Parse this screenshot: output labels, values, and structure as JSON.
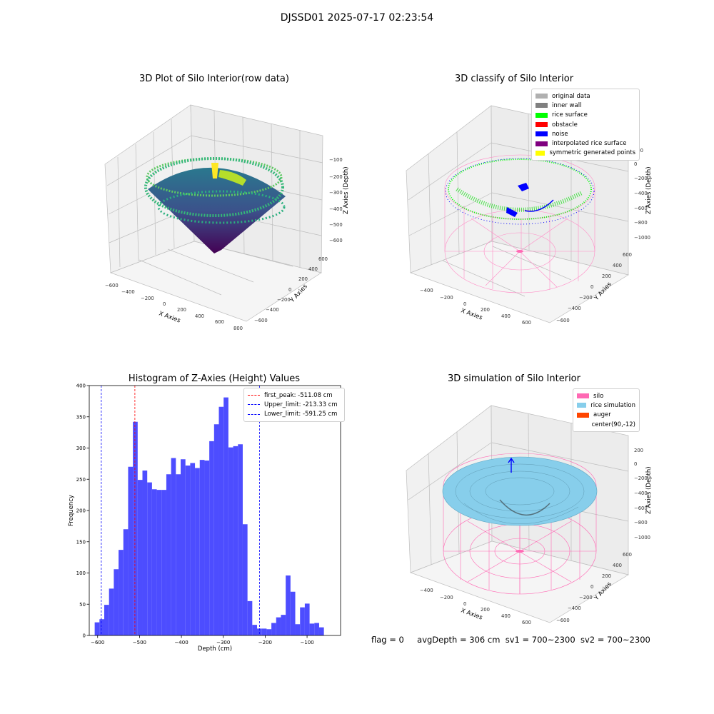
{
  "figure": {
    "suptitle": "DJSSD01 2025-07-17 02:23:54",
    "footer": {
      "flag": "flag = 0",
      "avg_depth": "avgDepth = 306 cm",
      "sv1": "sv1 = 700~2300",
      "sv2": "sv2 = 700~2300"
    }
  },
  "panels": {
    "p1": {
      "title": "3D Plot of Silo Interior(row data)",
      "xlabel": "X Axies",
      "ylabel": "Y Axies",
      "zlabel": "Z Axies (Depth)",
      "xticks": [
        "−600",
        "−400",
        "−200",
        "0",
        "200",
        "400",
        "600",
        "800"
      ],
      "yticks": [
        "600",
        "400",
        "200",
        "0",
        "−200",
        "−400",
        "−600"
      ],
      "zticks": [
        "−100",
        "−200",
        "−300",
        "−400",
        "−500",
        "−600"
      ],
      "colormap": "viridis"
    },
    "p2": {
      "title": "3D classify of Silo Interior",
      "xlabel": "X Axies",
      "ylabel": "Y Axies",
      "zlabel": "Z Axies (Depth)",
      "xticks": [
        "−400",
        "−200",
        "0",
        "200",
        "400",
        "600"
      ],
      "yticks": [
        "600",
        "400",
        "200",
        "0",
        "−200",
        "−400",
        "−600"
      ],
      "zticks": [
        "200",
        "0",
        "−200",
        "−400",
        "−600",
        "−800",
        "−1000"
      ],
      "legend": [
        {
          "label": "original data",
          "color": "#b0b0b0"
        },
        {
          "label": "inner wall",
          "color": "#808080"
        },
        {
          "label": "rice surface",
          "color": "#00ff00"
        },
        {
          "label": "obstacle",
          "color": "#ff0000"
        },
        {
          "label": "noise",
          "color": "#0000ff"
        },
        {
          "label": "interpolated rice surface",
          "color": "#800080"
        },
        {
          "label": "symmetric generated points",
          "color": "#ffff00"
        }
      ]
    },
    "p4": {
      "title": "3D simulation of Silo Interior",
      "xlabel": "X Axies",
      "ylabel": "Y Axies",
      "zlabel": "Z Axies (Depth)",
      "xticks": [
        "−400",
        "−200",
        "0",
        "200",
        "400",
        "600"
      ],
      "yticks": [
        "600",
        "400",
        "200",
        "0",
        "−200",
        "−400",
        "−600"
      ],
      "zticks": [
        "200",
        "0",
        "−200",
        "−400",
        "−600",
        "−800",
        "−1000"
      ],
      "legend": [
        {
          "label": "silo",
          "color": "#ff69b4"
        },
        {
          "label": "rice simulation",
          "color": "#87ceeb"
        },
        {
          "label": "auger",
          "color": "#ff4500"
        },
        {
          "label": "center(90,-12)",
          "color": ""
        }
      ]
    }
  },
  "chart_data": [
    {
      "type": "bar",
      "title": "Histogram of Z-Axies (Height) Values",
      "xlabel": "Depth (cm)",
      "ylabel": "Frequency",
      "xlim": [
        -620,
        -20
      ],
      "ylim": [
        0,
        400
      ],
      "xticks": [
        -600,
        -500,
        -400,
        -300,
        -200,
        -100
      ],
      "yticks": [
        0,
        50,
        100,
        150,
        200,
        250,
        300,
        350,
        400
      ],
      "bar_color": "#4d4dff",
      "bin_start": -607,
      "bin_width": 11.4,
      "values": [
        21,
        26,
        49,
        75,
        106,
        137,
        170,
        270,
        342,
        249,
        264,
        245,
        234,
        233,
        233,
        258,
        284,
        258,
        282,
        272,
        276,
        268,
        281,
        280,
        311,
        338,
        366,
        381,
        301,
        303,
        306,
        178,
        55,
        17,
        11,
        11,
        10,
        20,
        29,
        33,
        96,
        70,
        18,
        45,
        51,
        19,
        20,
        13
      ],
      "vlines": [
        {
          "label": "first_peak: -511.08 cm",
          "x": -511.08,
          "color": "#ff0000"
        },
        {
          "label": "Upper_limit: -213.33 cm",
          "x": -213.33,
          "color": "#0000ff"
        },
        {
          "label": "Lower_limit: -591.25 cm",
          "x": -591.25,
          "color": "#0000ff"
        }
      ]
    }
  ]
}
